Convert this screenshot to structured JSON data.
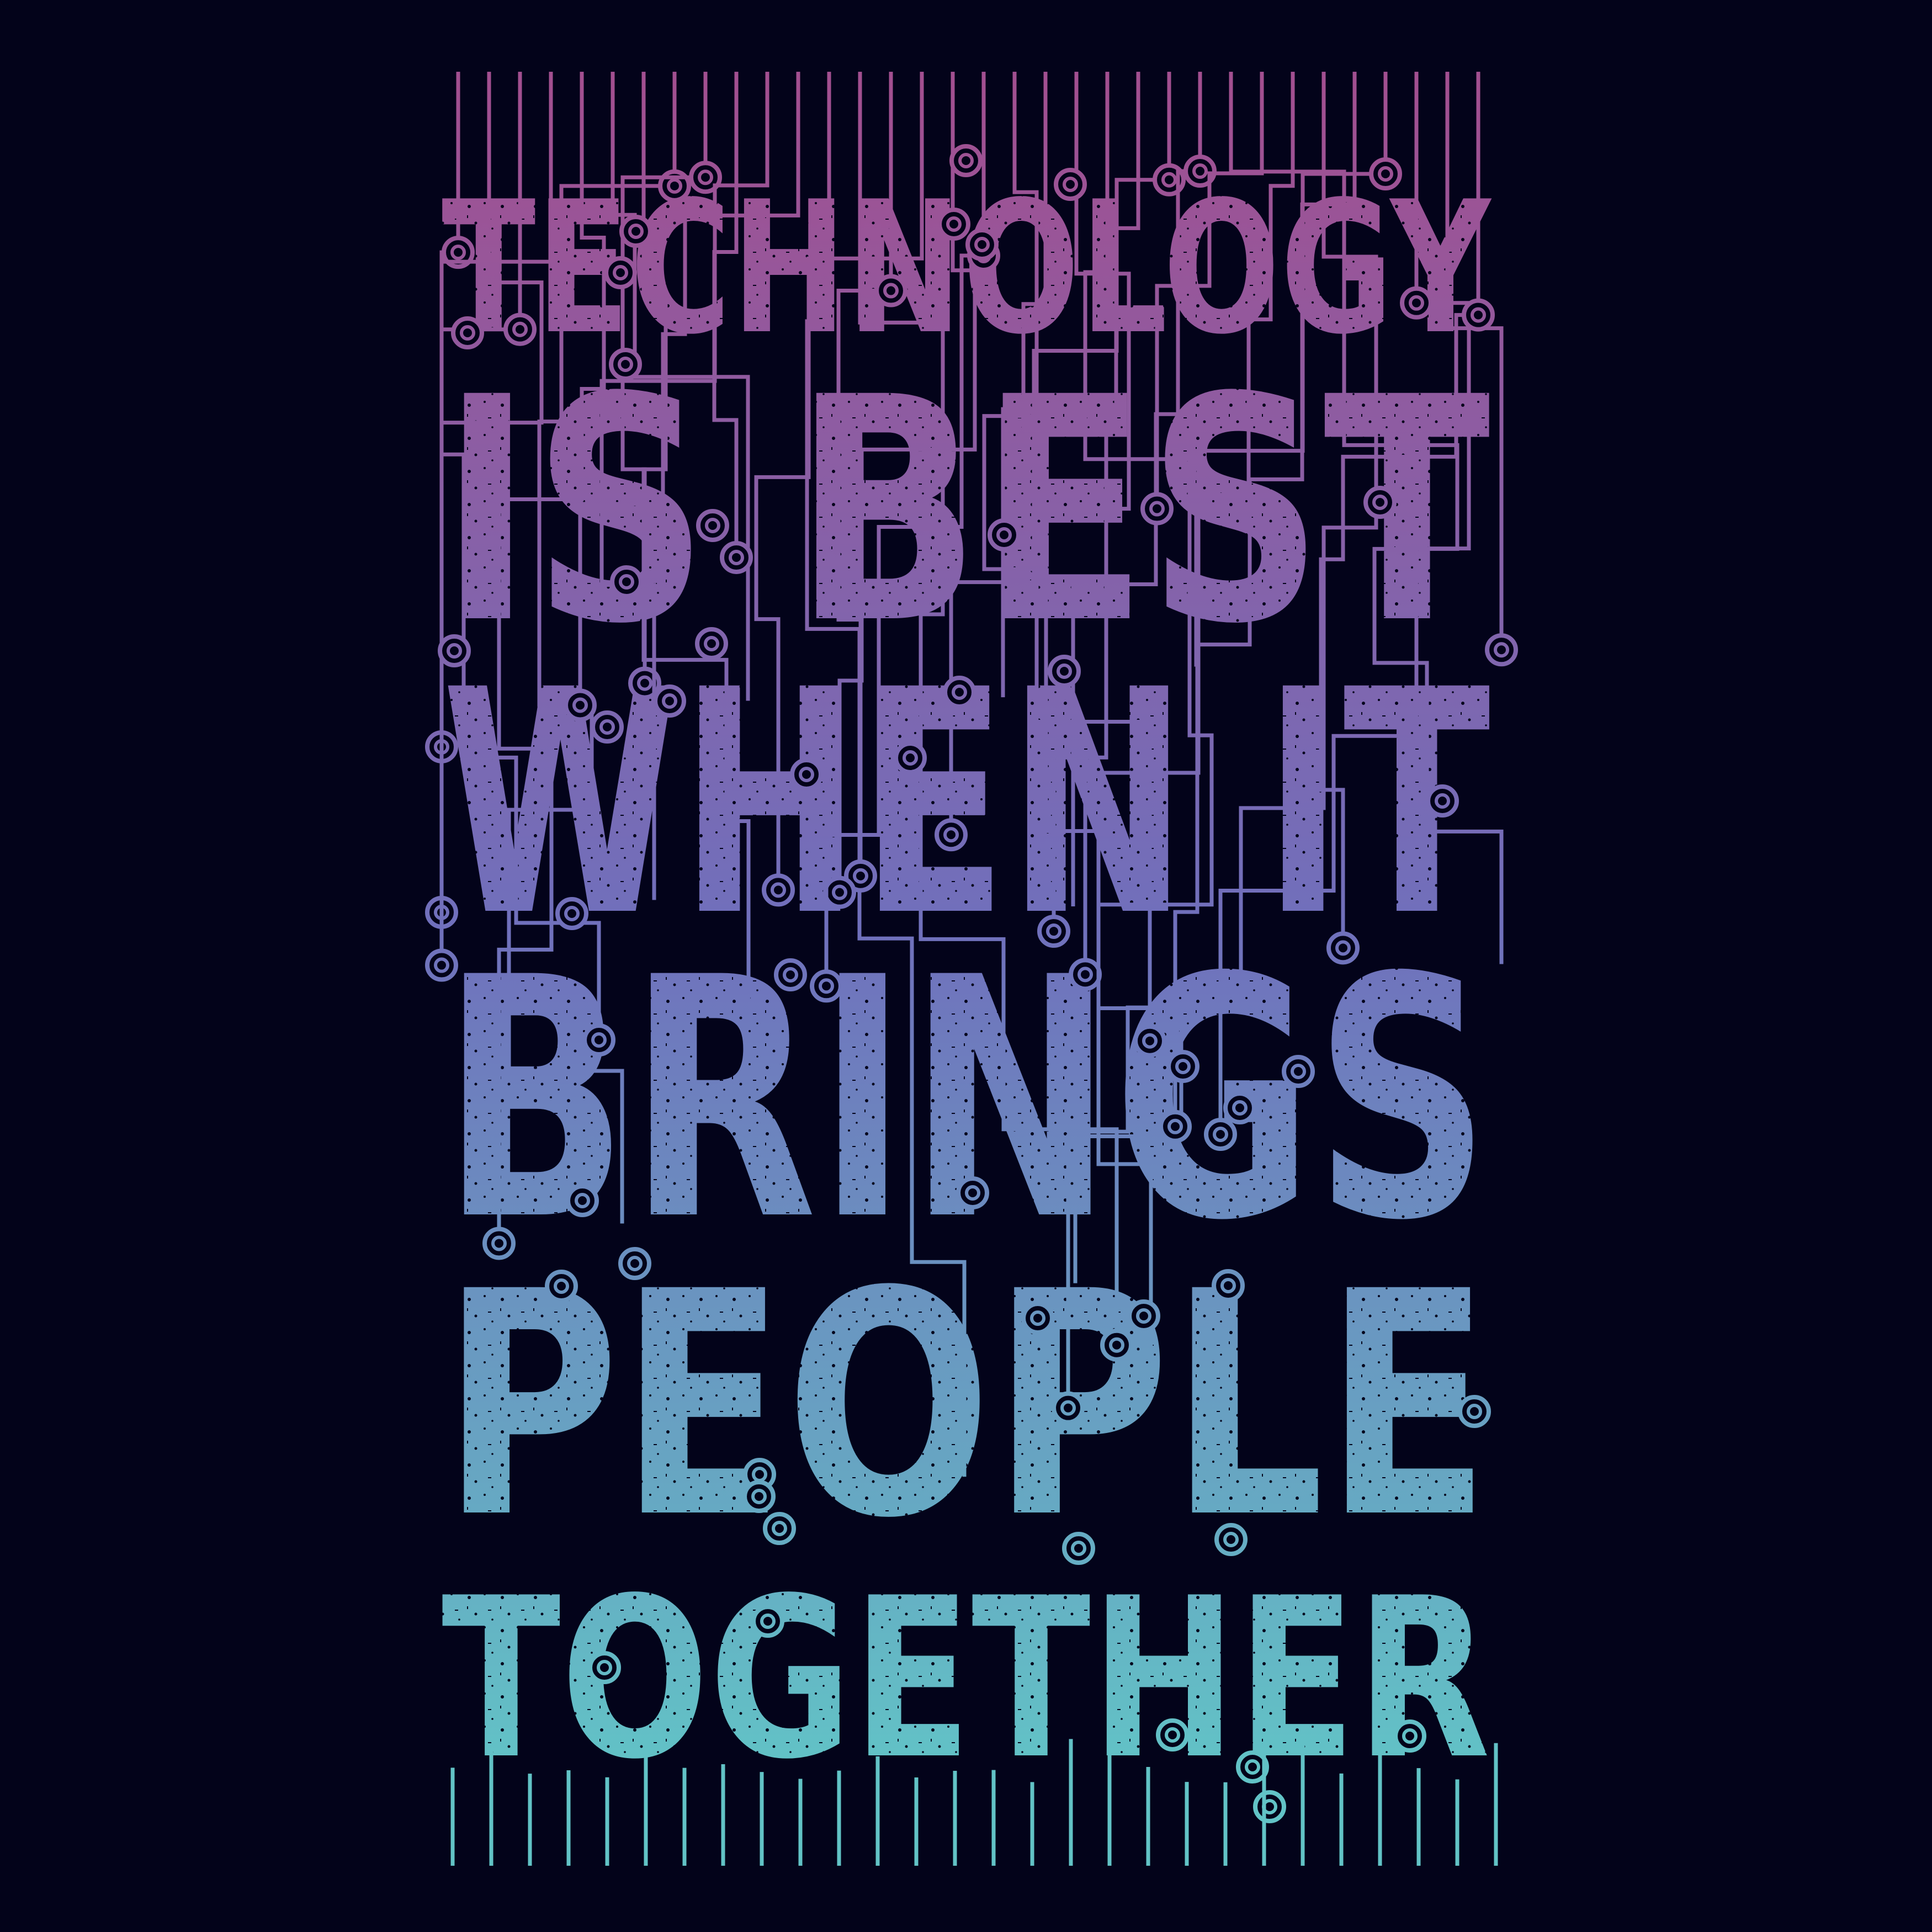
{
  "colors": {
    "background": "#03031a",
    "gradient_top": "#a24f90",
    "gradient_mid": "#7070bc",
    "gradient_bottom": "#62c3c6"
  },
  "headline": {
    "lines": [
      "TECHNOLOGY",
      "IS BEST",
      "WHEN IT",
      "BRINGS",
      "PEOPLE",
      "TOGETHER"
    ]
  },
  "decoration": {
    "style": "circuit-board traces with round node pads",
    "texture": "distressed grunge"
  }
}
